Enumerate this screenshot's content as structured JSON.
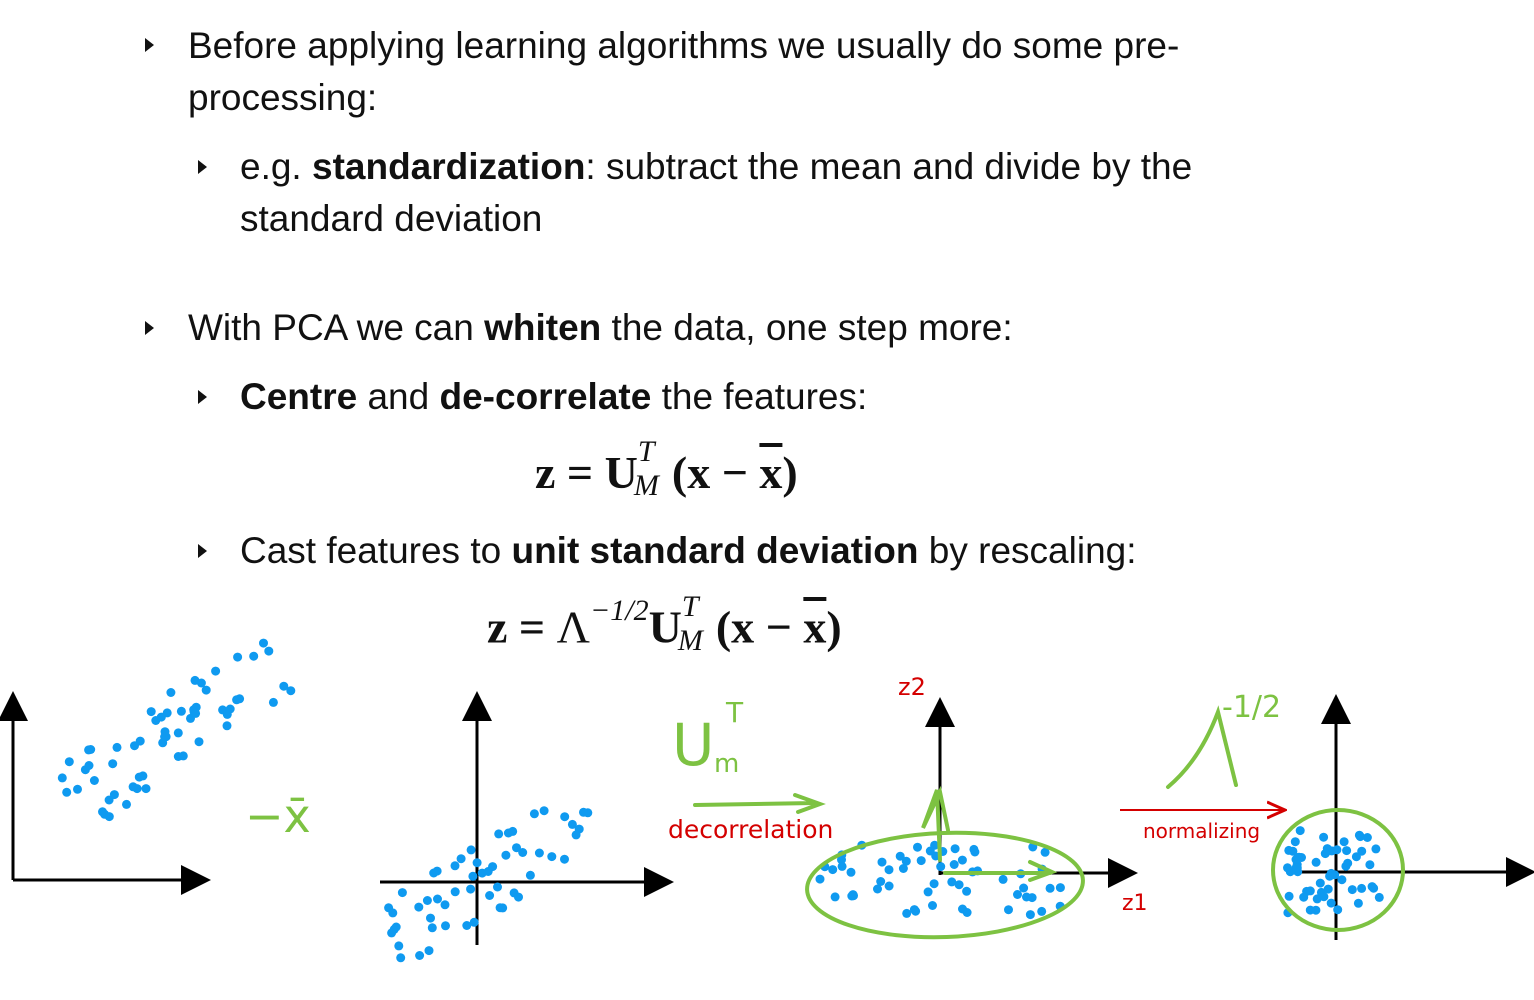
{
  "bullets": {
    "b1": "Before applying learning algorithms we usually do some pre-processing:",
    "b1_line1": "Before applying learning algorithms we usually do some pre-",
    "b1_line2": "processing:",
    "b1a_prefix": "e.g. ",
    "b1a_bold": "standardization",
    "b1a_rest_line1": ": subtract the mean and divide by the",
    "b1a_line2": "standard deviation",
    "b2_prefix": "With PCA we can ",
    "b2_bold": "whiten",
    "b2_rest": " the data, one step more:",
    "b2a_bold1": "Centre",
    "b2a_mid": " and ",
    "b2a_bold2": "de-correlate",
    "b2a_rest": " the features:",
    "b2b_prefix": "Cast features to ",
    "b2b_bold": "unit standard deviation",
    "b2b_rest": " by rescaling:"
  },
  "equations": {
    "eq1": {
      "lhs": "z",
      "eq": " = ",
      "U": "U",
      "sup": "T",
      "sub": "M",
      "open": "(x − ",
      "xbar": "x",
      "close": ")"
    },
    "eq2": {
      "lhs": "z",
      "eq": " = ",
      "Lambda": "Λ",
      "lsup": "−1/2",
      "U": "U",
      "sup": "T",
      "sub": "M",
      "open": "(x − ",
      "xbar": "x",
      "close": ")"
    }
  },
  "annotations": {
    "minus_xbar": "−x̄",
    "um_t": "U",
    "um_t_sub": "m",
    "um_t_sup": "T",
    "decorrelation": "decorrelation",
    "z1": "z1",
    "z2": "z2",
    "lambda": "Λ",
    "lambda_exp": "-1/2",
    "normalizing": "normalizing"
  },
  "colors": {
    "points": "#0f9af0",
    "annotation_green": "#7dc242",
    "annotation_red": "#d40000",
    "axes": "#000000"
  }
}
